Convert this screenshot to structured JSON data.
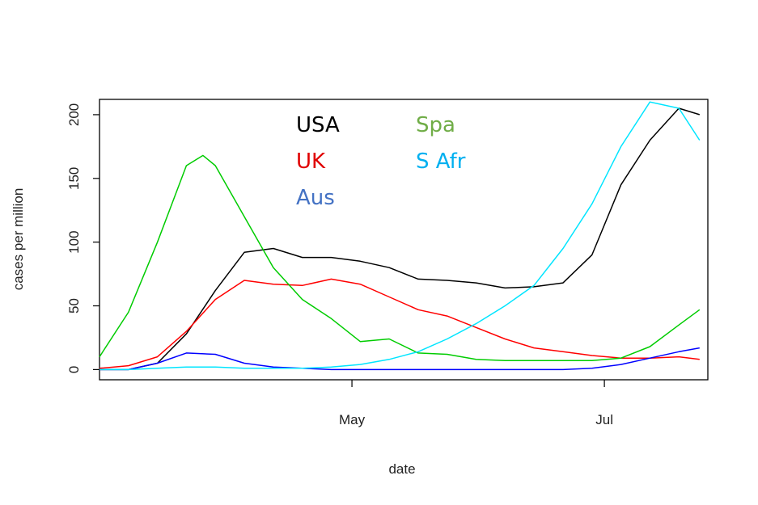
{
  "chart_data": {
    "type": "line",
    "title": "",
    "xlabel": "date",
    "ylabel": "cases per million",
    "x_axis": {
      "type": "date",
      "range": [
        "2020-03-01",
        "2020-07-26"
      ],
      "ticks": [
        {
          "date": "2020-05-01",
          "label": "May"
        },
        {
          "date": "2020-07-01",
          "label": "Jul"
        }
      ]
    },
    "y_axis": {
      "range": [
        -8,
        212
      ],
      "ticks": [
        0,
        50,
        100,
        150,
        200
      ]
    },
    "grid": false,
    "legend_placement": "top-center",
    "series": [
      {
        "name": "USA",
        "color": "#000000",
        "dates": [
          "2020-03-01",
          "2020-03-08",
          "2020-03-15",
          "2020-03-22",
          "2020-03-29",
          "2020-04-05",
          "2020-04-12",
          "2020-04-19",
          "2020-04-26",
          "2020-05-03",
          "2020-05-10",
          "2020-05-17",
          "2020-05-24",
          "2020-05-31",
          "2020-06-07",
          "2020-06-14",
          "2020-06-21",
          "2020-06-28",
          "2020-07-05",
          "2020-07-12",
          "2020-07-19",
          "2020-07-24"
        ],
        "values": [
          0,
          0,
          5,
          28,
          62,
          92,
          95,
          88,
          88,
          85,
          80,
          71,
          70,
          68,
          64,
          65,
          68,
          90,
          145,
          180,
          205,
          200
        ]
      },
      {
        "name": "UK",
        "color": "#ff0000",
        "dates": [
          "2020-03-01",
          "2020-03-08",
          "2020-03-15",
          "2020-03-22",
          "2020-03-29",
          "2020-04-05",
          "2020-04-12",
          "2020-04-19",
          "2020-04-26",
          "2020-05-03",
          "2020-05-10",
          "2020-05-17",
          "2020-05-24",
          "2020-05-31",
          "2020-06-07",
          "2020-06-14",
          "2020-06-21",
          "2020-06-28",
          "2020-07-05",
          "2020-07-12",
          "2020-07-19",
          "2020-07-24"
        ],
        "values": [
          1,
          3,
          10,
          30,
          55,
          70,
          67,
          66,
          71,
          67,
          57,
          47,
          42,
          33,
          24,
          17,
          14,
          11,
          9,
          9,
          10,
          8
        ]
      },
      {
        "name": "Aus",
        "color": "#0000ff",
        "dates": [
          "2020-03-01",
          "2020-03-08",
          "2020-03-15",
          "2020-03-22",
          "2020-03-29",
          "2020-04-05",
          "2020-04-12",
          "2020-04-19",
          "2020-04-26",
          "2020-05-03",
          "2020-05-10",
          "2020-05-17",
          "2020-05-24",
          "2020-05-31",
          "2020-06-07",
          "2020-06-14",
          "2020-06-21",
          "2020-06-28",
          "2020-07-05",
          "2020-07-12",
          "2020-07-19",
          "2020-07-24"
        ],
        "values": [
          0,
          0,
          5,
          13,
          12,
          5,
          2,
          1,
          0,
          0,
          0,
          0,
          0,
          0,
          0,
          0,
          0,
          1,
          4,
          9,
          14,
          17
        ]
      },
      {
        "name": "Spa",
        "color": "#00cc00",
        "dates": [
          "2020-03-01",
          "2020-03-08",
          "2020-03-15",
          "2020-03-22",
          "2020-03-26",
          "2020-03-29",
          "2020-04-05",
          "2020-04-12",
          "2020-04-19",
          "2020-04-26",
          "2020-05-03",
          "2020-05-10",
          "2020-05-17",
          "2020-05-24",
          "2020-05-31",
          "2020-06-07",
          "2020-06-14",
          "2020-06-21",
          "2020-06-28",
          "2020-07-05",
          "2020-07-12",
          "2020-07-19",
          "2020-07-24"
        ],
        "values": [
          10,
          45,
          100,
          160,
          168,
          160,
          120,
          80,
          55,
          40,
          22,
          24,
          13,
          12,
          8,
          7,
          7,
          7,
          7,
          9,
          18,
          35,
          47
        ]
      },
      {
        "name": "S Afr",
        "color": "#00e5ff",
        "dates": [
          "2020-03-01",
          "2020-03-08",
          "2020-03-15",
          "2020-03-22",
          "2020-03-29",
          "2020-04-05",
          "2020-04-12",
          "2020-04-19",
          "2020-04-26",
          "2020-05-03",
          "2020-05-10",
          "2020-05-17",
          "2020-05-24",
          "2020-05-31",
          "2020-06-07",
          "2020-06-14",
          "2020-06-21",
          "2020-06-28",
          "2020-07-05",
          "2020-07-12",
          "2020-07-19",
          "2020-07-24"
        ],
        "values": [
          0,
          0,
          1,
          2,
          2,
          1,
          1,
          1,
          2,
          4,
          8,
          14,
          24,
          36,
          50,
          66,
          95,
          130,
          175,
          210,
          205,
          180
        ]
      }
    ],
    "legend": [
      {
        "label": "USA",
        "color": "#000000"
      },
      {
        "label": "UK",
        "color": "#e00000"
      },
      {
        "label": "Aus",
        "color": "#4472c4"
      },
      {
        "label": "Spa",
        "color": "#70ad47"
      },
      {
        "label": "S Afr",
        "color": "#00b0f0"
      }
    ]
  }
}
